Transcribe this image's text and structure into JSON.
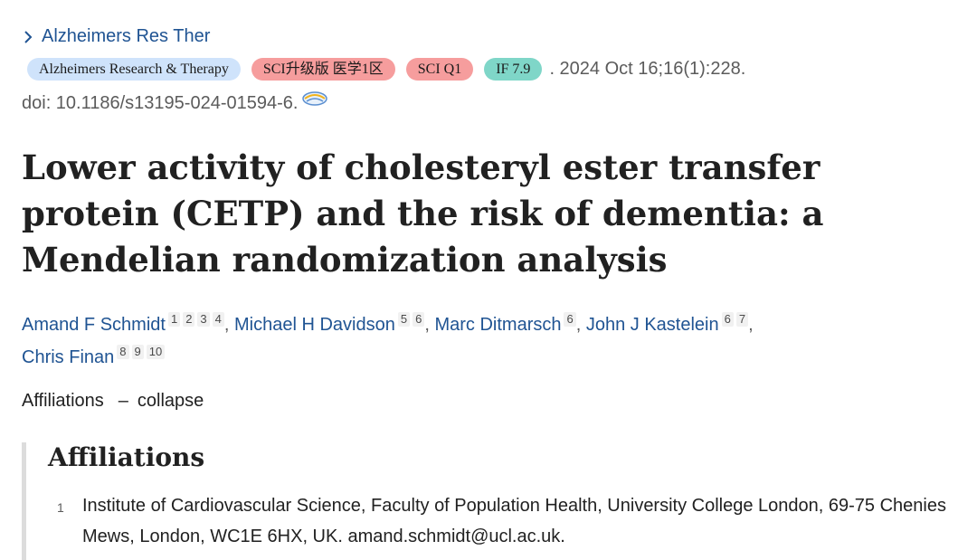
{
  "journal": {
    "link_label": "Alzheimers Res Ther"
  },
  "badges": [
    {
      "label": "Alzheimers Research & Therapy",
      "color": "#cfe3fb"
    },
    {
      "label": "SCI升级版 医学1区",
      "color": "#f69d9d"
    },
    {
      "label": "SCI Q1",
      "color": "#f69d9d"
    },
    {
      "label": "IF 7.9",
      "color": "#7fd6c8"
    }
  ],
  "citation": ". 2024 Oct 16;16(1):228.",
  "doi": "doi: 10.1186/s13195-024-01594-6.",
  "title": "Lower activity of cholesteryl ester transfer protein (CETP) and the risk of dementia: a Mendelian randomization analysis",
  "authors": [
    {
      "name": "Amand F Schmidt",
      "affs": [
        "1",
        "2",
        "3",
        "4"
      ]
    },
    {
      "name": "Michael H Davidson",
      "affs": [
        "5",
        "6"
      ]
    },
    {
      "name": "Marc Ditmarsch",
      "affs": [
        "6"
      ]
    },
    {
      "name": "John J Kastelein",
      "affs": [
        "6",
        "7"
      ]
    },
    {
      "name": "Chris Finan",
      "affs": [
        "8",
        "9",
        "10"
      ]
    }
  ],
  "affiliations_toggle": {
    "label": "Affiliations",
    "dash": "–",
    "action": "collapse"
  },
  "affiliations_panel": {
    "heading": "Affiliations",
    "items": [
      {
        "num": "1",
        "text": "Institute of Cardiovascular Science, Faculty of Population Health, University College London, 69-75 Chenies Mews, London, WC1E 6HX, UK. amand.schmidt@ucl.ac.uk."
      }
    ]
  },
  "colors": {
    "link": "#205493",
    "muted": "#5b5b5b",
    "text": "#212121"
  },
  "icons": {
    "journal_chevron": "chevron-right-icon",
    "doi_icon": "full-text-link-icon"
  }
}
